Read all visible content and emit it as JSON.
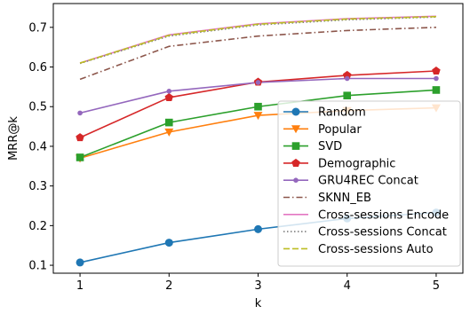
{
  "chart_data": {
    "type": "line",
    "title": "",
    "xlabel": "k",
    "ylabel": "MRR@k",
    "x": [
      1,
      2,
      3,
      4,
      5
    ],
    "xticks": [
      "1",
      "2",
      "3",
      "4",
      "5"
    ],
    "yticks": [
      "0.1",
      "0.2",
      "0.3",
      "0.4",
      "0.5",
      "0.6",
      "0.7"
    ],
    "xlim": [
      0.7,
      5.3
    ],
    "ylim": [
      0.08,
      0.76
    ],
    "grid": false,
    "legend_position": "lower-right",
    "series": [
      {
        "name": "Random",
        "values": [
          0.107,
          0.157,
          0.191,
          0.218,
          0.233
        ],
        "color": "#1f77b4",
        "marker": "circle",
        "dash": "solid"
      },
      {
        "name": "Popular",
        "values": [
          0.37,
          0.436,
          0.478,
          0.49,
          0.497
        ],
        "color": "#ff7f0e",
        "marker": "triangle-down",
        "dash": "solid"
      },
      {
        "name": "SVD",
        "values": [
          0.372,
          0.46,
          0.5,
          0.528,
          0.542
        ],
        "color": "#2ca02c",
        "marker": "square",
        "dash": "solid"
      },
      {
        "name": "Demographic",
        "values": [
          0.422,
          0.523,
          0.562,
          0.579,
          0.59
        ],
        "color": "#d62728",
        "marker": "pentagon",
        "dash": "solid"
      },
      {
        "name": "GRU4REC Concat",
        "values": [
          0.484,
          0.539,
          0.561,
          0.571,
          0.571
        ],
        "color": "#9467bd",
        "marker": "small-circle",
        "dash": "solid"
      },
      {
        "name": "SKNN_EB",
        "values": [
          0.569,
          0.652,
          0.678,
          0.692,
          0.7
        ],
        "color": "#8c564b",
        "marker": "none",
        "dash": "dashdot"
      },
      {
        "name": "Cross-sessions Encode",
        "values": [
          0.61,
          0.681,
          0.709,
          0.722,
          0.728
        ],
        "color": "#e377c2",
        "marker": "none",
        "dash": "solid"
      },
      {
        "name": "Cross-sessions Concat",
        "values": [
          0.609,
          0.678,
          0.706,
          0.719,
          0.726
        ],
        "color": "#7f7f7f",
        "marker": "none",
        "dash": "dotted"
      },
      {
        "name": "Cross-sessions Auto",
        "values": [
          0.61,
          0.68,
          0.708,
          0.721,
          0.727
        ],
        "color": "#bcbd22",
        "marker": "none",
        "dash": "dashed"
      }
    ]
  }
}
